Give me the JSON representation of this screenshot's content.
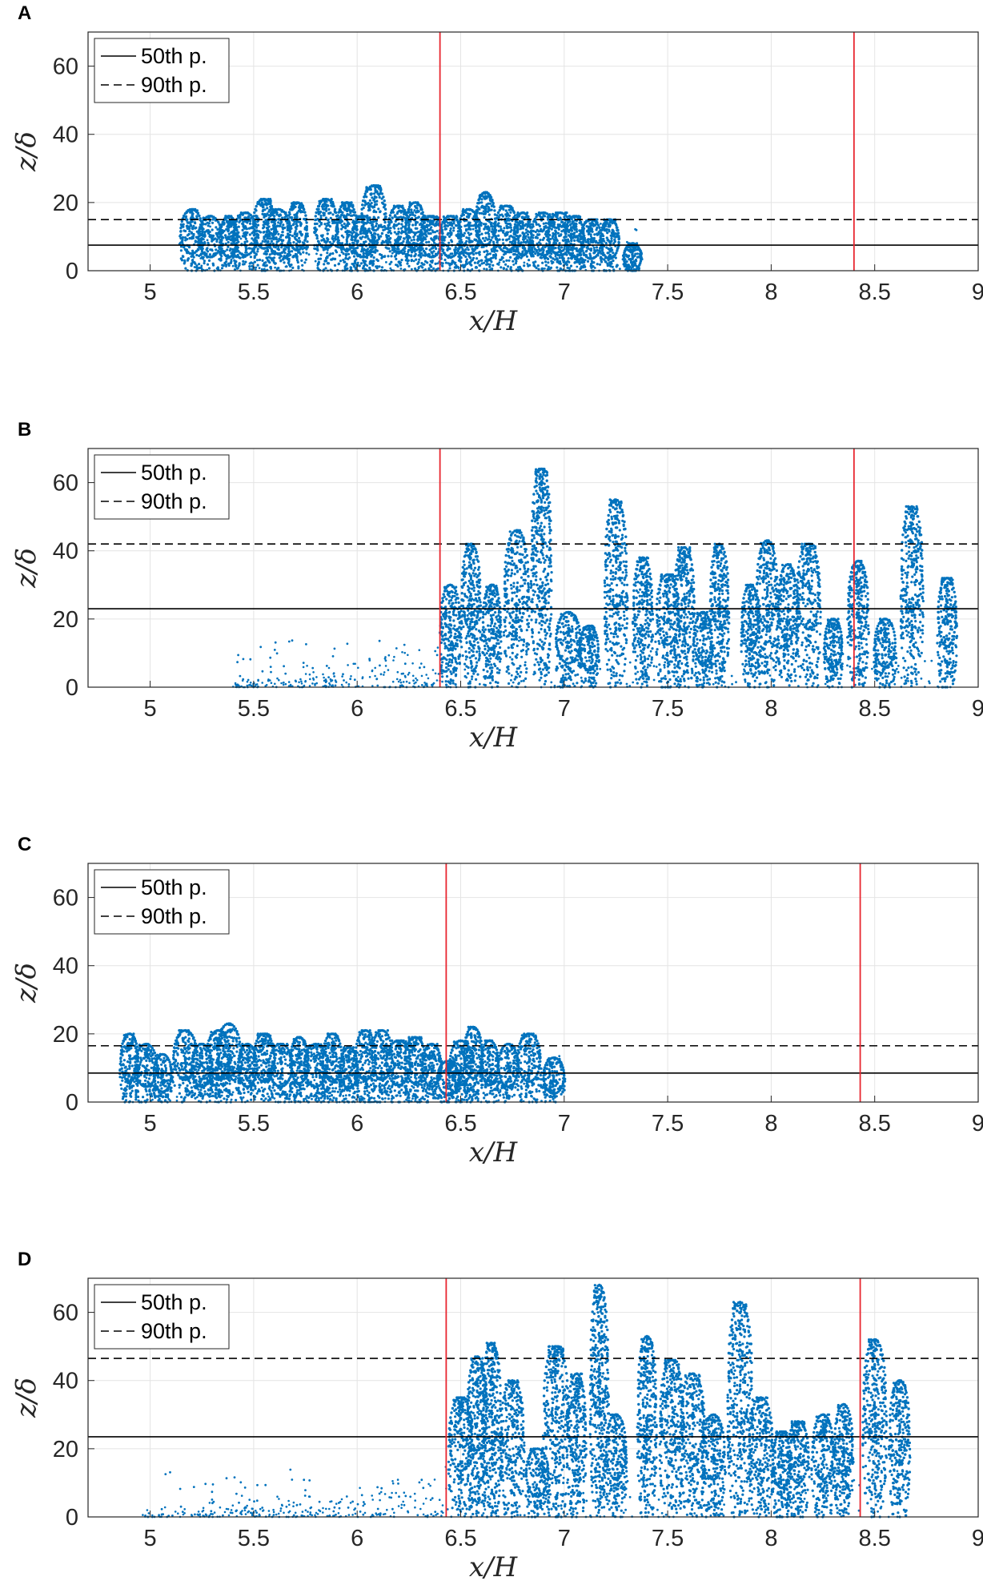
{
  "chart_data": [
    {
      "type": "scatter",
      "panel_label": "A",
      "xlabel": "x/H",
      "ylabel": "z/δ",
      "xlim": [
        4.7,
        9
      ],
      "ylim": [
        0,
        70
      ],
      "xticks": [
        "5",
        "5.5",
        "6",
        "6.5",
        "7",
        "7.5",
        "8",
        "8.5",
        "9"
      ],
      "yticks": [
        "0",
        "20",
        "40",
        "60"
      ],
      "grid": true,
      "legend": {
        "placement": "top-left",
        "entries": [
          "50th p.",
          "90th p."
        ]
      },
      "percentile_lines": {
        "p50": 7.5,
        "p90": 15
      },
      "red_vertical_lines_x": [
        6.4,
        8.4
      ],
      "point_color": "#0072BD",
      "particle_extent_x": [
        5.2,
        7.35
      ],
      "vortex_peaks": [
        {
          "x": 5.2,
          "z": 18
        },
        {
          "x": 5.29,
          "z": 16
        },
        {
          "x": 5.38,
          "z": 16
        },
        {
          "x": 5.46,
          "z": 17
        },
        {
          "x": 5.55,
          "z": 21
        },
        {
          "x": 5.62,
          "z": 18
        },
        {
          "x": 5.71,
          "z": 20
        },
        {
          "x": 5.85,
          "z": 21
        },
        {
          "x": 5.95,
          "z": 20
        },
        {
          "x": 6.03,
          "z": 16
        },
        {
          "x": 6.08,
          "z": 25
        },
        {
          "x": 6.2,
          "z": 19
        },
        {
          "x": 6.28,
          "z": 20
        },
        {
          "x": 6.36,
          "z": 16
        },
        {
          "x": 6.45,
          "z": 16
        },
        {
          "x": 6.54,
          "z": 18
        },
        {
          "x": 6.62,
          "z": 23
        },
        {
          "x": 6.72,
          "z": 19
        },
        {
          "x": 6.8,
          "z": 17
        },
        {
          "x": 6.9,
          "z": 17
        },
        {
          "x": 6.98,
          "z": 17
        },
        {
          "x": 7.05,
          "z": 16
        },
        {
          "x": 7.13,
          "z": 15
        },
        {
          "x": 7.22,
          "z": 15
        },
        {
          "x": 7.33,
          "z": 8
        }
      ]
    },
    {
      "type": "scatter",
      "panel_label": "B",
      "xlabel": "x/H",
      "ylabel": "z/δ",
      "xlim": [
        4.7,
        9
      ],
      "ylim": [
        0,
        70
      ],
      "xticks": [
        "5",
        "5.5",
        "6",
        "6.5",
        "7",
        "7.5",
        "8",
        "8.5",
        "9"
      ],
      "yticks": [
        "0",
        "20",
        "40",
        "60"
      ],
      "grid": true,
      "legend": {
        "placement": "top-left",
        "entries": [
          "50th p.",
          "90th p."
        ]
      },
      "percentile_lines": {
        "p50": 23,
        "p90": 42
      },
      "red_vertical_lines_x": [
        6.4,
        8.4
      ],
      "point_color": "#0072BD",
      "particle_extent_x": [
        5.4,
        8.9
      ],
      "vortex_peaks": [
        {
          "x": 6.45,
          "z": 30
        },
        {
          "x": 6.55,
          "z": 42
        },
        {
          "x": 6.65,
          "z": 30
        },
        {
          "x": 6.77,
          "z": 46
        },
        {
          "x": 6.89,
          "z": 64
        },
        {
          "x": 7.02,
          "z": 22
        },
        {
          "x": 7.12,
          "z": 18
        },
        {
          "x": 7.25,
          "z": 55
        },
        {
          "x": 7.38,
          "z": 38
        },
        {
          "x": 7.5,
          "z": 33
        },
        {
          "x": 7.58,
          "z": 41
        },
        {
          "x": 7.67,
          "z": 22
        },
        {
          "x": 7.75,
          "z": 42
        },
        {
          "x": 7.9,
          "z": 30
        },
        {
          "x": 7.98,
          "z": 43
        },
        {
          "x": 8.08,
          "z": 36
        },
        {
          "x": 8.18,
          "z": 42
        },
        {
          "x": 8.3,
          "z": 20
        },
        {
          "x": 8.42,
          "z": 37
        },
        {
          "x": 8.55,
          "z": 20
        },
        {
          "x": 8.68,
          "z": 53
        },
        {
          "x": 8.85,
          "z": 32
        }
      ]
    },
    {
      "type": "scatter",
      "panel_label": "C",
      "xlabel": "x/H",
      "ylabel": "z/δ",
      "xlim": [
        4.7,
        9
      ],
      "ylim": [
        0,
        70
      ],
      "xticks": [
        "5",
        "5.5",
        "6",
        "6.5",
        "7",
        "7.5",
        "8",
        "8.5",
        "9"
      ],
      "yticks": [
        "0",
        "20",
        "40",
        "60"
      ],
      "grid": true,
      "legend": {
        "placement": "top-left",
        "entries": [
          "50th p.",
          "90th p."
        ]
      },
      "percentile_lines": {
        "p50": 8.5,
        "p90": 16.5
      },
      "red_vertical_lines_x": [
        6.43,
        8.43
      ],
      "point_color": "#0072BD",
      "particle_extent_x": [
        4.88,
        6.98
      ],
      "vortex_peaks": [
        {
          "x": 4.9,
          "z": 20
        },
        {
          "x": 4.98,
          "z": 17
        },
        {
          "x": 5.06,
          "z": 14
        },
        {
          "x": 5.17,
          "z": 21
        },
        {
          "x": 5.25,
          "z": 17
        },
        {
          "x": 5.33,
          "z": 21
        },
        {
          "x": 5.38,
          "z": 23
        },
        {
          "x": 5.47,
          "z": 17
        },
        {
          "x": 5.55,
          "z": 20
        },
        {
          "x": 5.63,
          "z": 17
        },
        {
          "x": 5.72,
          "z": 19
        },
        {
          "x": 5.8,
          "z": 17
        },
        {
          "x": 5.88,
          "z": 20
        },
        {
          "x": 5.96,
          "z": 16
        },
        {
          "x": 6.04,
          "z": 21
        },
        {
          "x": 6.12,
          "z": 21
        },
        {
          "x": 6.2,
          "z": 18
        },
        {
          "x": 6.28,
          "z": 19
        },
        {
          "x": 6.36,
          "z": 17
        },
        {
          "x": 6.44,
          "z": 12
        },
        {
          "x": 6.5,
          "z": 18
        },
        {
          "x": 6.56,
          "z": 22
        },
        {
          "x": 6.64,
          "z": 18
        },
        {
          "x": 6.73,
          "z": 17
        },
        {
          "x": 6.83,
          "z": 20
        },
        {
          "x": 6.95,
          "z": 13
        }
      ]
    },
    {
      "type": "scatter",
      "panel_label": "D",
      "xlabel": "x/H",
      "ylabel": "z/δ",
      "xlim": [
        4.7,
        9
      ],
      "ylim": [
        0,
        70
      ],
      "xticks": [
        "5",
        "5.5",
        "6",
        "6.5",
        "7",
        "7.5",
        "8",
        "8.5",
        "9"
      ],
      "yticks": [
        "0",
        "20",
        "40",
        "60"
      ],
      "grid": true,
      "legend": {
        "placement": "top-left",
        "entries": [
          "50th p.",
          "90th p."
        ]
      },
      "percentile_lines": {
        "p50": 23.5,
        "p90": 46.5
      },
      "red_vertical_lines_x": [
        6.43,
        8.43
      ],
      "point_color": "#0072BD",
      "particle_extent_x": [
        4.95,
        8.65
      ],
      "vortex_peaks": [
        {
          "x": 6.5,
          "z": 35
        },
        {
          "x": 6.58,
          "z": 47
        },
        {
          "x": 6.65,
          "z": 51
        },
        {
          "x": 6.75,
          "z": 40
        },
        {
          "x": 6.87,
          "z": 20
        },
        {
          "x": 6.96,
          "z": 50
        },
        {
          "x": 7.06,
          "z": 42
        },
        {
          "x": 7.17,
          "z": 68
        },
        {
          "x": 7.25,
          "z": 30
        },
        {
          "x": 7.4,
          "z": 53
        },
        {
          "x": 7.52,
          "z": 46
        },
        {
          "x": 7.62,
          "z": 42
        },
        {
          "x": 7.72,
          "z": 30
        },
        {
          "x": 7.85,
          "z": 63
        },
        {
          "x": 7.95,
          "z": 35
        },
        {
          "x": 8.05,
          "z": 25
        },
        {
          "x": 8.13,
          "z": 28
        },
        {
          "x": 8.25,
          "z": 30
        },
        {
          "x": 8.35,
          "z": 33
        },
        {
          "x": 8.5,
          "z": 52
        },
        {
          "x": 8.62,
          "z": 40
        }
      ]
    }
  ]
}
